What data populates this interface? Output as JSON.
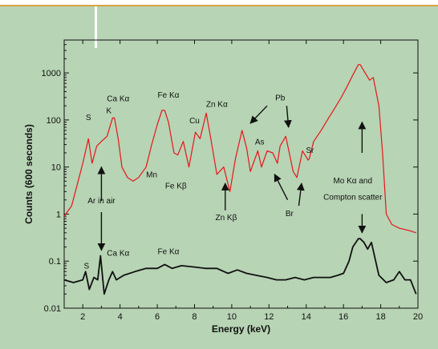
{
  "chart_data": {
    "type": "line",
    "xlabel": "Energy (keV)",
    "ylabel": "Counts (600 seconds)",
    "xlim": [
      1,
      20
    ],
    "ylim": [
      0.01,
      5000
    ],
    "yscale": "log",
    "xticks": [
      2,
      4,
      6,
      8,
      10,
      12,
      14,
      16,
      18,
      20
    ],
    "yticks": [
      {
        "v": 0.01,
        "label": "0.01"
      },
      {
        "v": 0.1,
        "label": "0.1"
      },
      {
        "v": 1,
        "label": "1"
      },
      {
        "v": 10,
        "label": "10"
      },
      {
        "v": 100,
        "label": "100"
      },
      {
        "v": 1000,
        "label": "1000"
      }
    ],
    "series": [
      {
        "color": "#e8141b",
        "x": [
          1.0,
          1.4,
          1.8,
          2.0,
          2.3,
          2.5,
          2.75,
          3.0,
          3.3,
          3.6,
          3.7,
          3.9,
          4.1,
          4.4,
          4.7,
          5.0,
          5.4,
          5.7,
          6.0,
          6.25,
          6.4,
          6.6,
          6.9,
          7.1,
          7.4,
          7.7,
          8.05,
          8.3,
          8.63,
          8.9,
          9.2,
          9.57,
          9.9,
          10.2,
          10.55,
          10.8,
          11.0,
          11.4,
          11.6,
          11.9,
          12.2,
          12.45,
          12.6,
          12.9,
          13.3,
          13.5,
          13.8,
          14.1,
          14.16,
          14.4,
          14.8,
          15.2,
          15.5,
          15.9,
          16.2,
          16.5,
          16.8,
          16.9,
          17.1,
          17.4,
          17.6,
          17.9,
          18.1,
          18.3,
          18.6,
          19.0,
          19.5,
          19.9
        ],
        "y": [
          0.9,
          1.5,
          6,
          12,
          40,
          12,
          28,
          35,
          45,
          110,
          110,
          40,
          10,
          6,
          5,
          6,
          10,
          30,
          80,
          160,
          160,
          90,
          20,
          18,
          35,
          10,
          55,
          40,
          140,
          35,
          7,
          10,
          3,
          15,
          60,
          25,
          8,
          22,
          10,
          22,
          20,
          12,
          28,
          45,
          8,
          6,
          22,
          14,
          15,
          35,
          60,
          110,
          170,
          310,
          520,
          900,
          1500,
          1500,
          1100,
          700,
          800,
          200,
          20,
          1,
          0.6,
          0.5,
          0.45,
          0.4
        ]
      },
      {
        "color": "#111111",
        "x": [
          1.0,
          1.5,
          2.0,
          2.15,
          2.35,
          2.6,
          2.8,
          2.95,
          3.15,
          3.4,
          3.6,
          3.8,
          4.2,
          4.8,
          5.4,
          6.0,
          6.4,
          6.8,
          7.3,
          8.0,
          8.6,
          9.2,
          9.8,
          10.3,
          10.8,
          11.3,
          11.9,
          12.4,
          12.9,
          13.4,
          13.9,
          14.4,
          14.9,
          15.3,
          15.7,
          16.0,
          16.3,
          16.5,
          16.8,
          16.9,
          17.1,
          17.3,
          17.5,
          17.9,
          18.3,
          18.7,
          19.0,
          19.3,
          19.6,
          19.9
        ],
        "y": [
          0.04,
          0.035,
          0.04,
          0.06,
          0.025,
          0.045,
          0.04,
          0.13,
          0.02,
          0.04,
          0.06,
          0.04,
          0.05,
          0.06,
          0.07,
          0.07,
          0.085,
          0.07,
          0.08,
          0.075,
          0.07,
          0.07,
          0.055,
          0.065,
          0.055,
          0.05,
          0.045,
          0.04,
          0.04,
          0.045,
          0.04,
          0.045,
          0.045,
          0.045,
          0.05,
          0.055,
          0.1,
          0.2,
          0.3,
          0.3,
          0.25,
          0.18,
          0.25,
          0.05,
          0.035,
          0.04,
          0.06,
          0.04,
          0.04,
          0.02
        ]
      }
    ],
    "annotations": [
      {
        "text": "S",
        "x": 2.3,
        "y": 100
      },
      {
        "text": "K",
        "x": 3.4,
        "y": 140
      },
      {
        "text": "Ca Kα",
        "x": 3.9,
        "y": 250
      },
      {
        "text": "Fe Kα",
        "x": 6.6,
        "y": 300
      },
      {
        "text": "Mn",
        "x": 5.7,
        "y": 6
      },
      {
        "text": "Fe Kβ",
        "x": 7.0,
        "y": 3.5
      },
      {
        "text": "Cu",
        "x": 8.0,
        "y": 85
      },
      {
        "text": "Zn Kα",
        "x": 9.2,
        "y": 190
      },
      {
        "text": "Pb",
        "x": 12.6,
        "y": 260
      },
      {
        "text": "As",
        "x": 11.5,
        "y": 30
      },
      {
        "text": "Sr",
        "x": 14.2,
        "y": 20
      },
      {
        "text": "Zn Kβ",
        "x": 9.7,
        "y": 0.75
      },
      {
        "text": "Br",
        "x": 13.1,
        "y": 0.9
      },
      {
        "text": "Ar in air",
        "x": 3.0,
        "y": 1.7
      },
      {
        "text": "Mo Kα and",
        "x": 16.5,
        "y": 4.5
      },
      {
        "text": "Compton scatter",
        "x": 16.5,
        "y": 2.0
      },
      {
        "text": "S",
        "x": 2.2,
        "y": 0.07
      },
      {
        "text": "Ca Kα",
        "x": 3.9,
        "y": 0.13
      },
      {
        "text": "Fe Kα",
        "x": 6.6,
        "y": 0.14
      }
    ],
    "arrows": [
      {
        "x1": 3.0,
        "y1": 1.9,
        "x2": 3.0,
        "y2": 10
      },
      {
        "x1": 3.0,
        "y1": 1.1,
        "x2": 3.0,
        "y2": 0.17
      },
      {
        "x1": 11.9,
        "y1": 200,
        "x2": 11.0,
        "y2": 85
      },
      {
        "x1": 12.95,
        "y1": 200,
        "x2": 13.05,
        "y2": 70
      },
      {
        "x1": 13.0,
        "y1": 2.0,
        "x2": 12.3,
        "y2": 7
      },
      {
        "x1": 9.65,
        "y1": 1.2,
        "x2": 9.65,
        "y2": 4.5
      },
      {
        "x1": 13.6,
        "y1": 1.5,
        "x2": 13.75,
        "y2": 4.5
      },
      {
        "x1": 17.0,
        "y1": 20,
        "x2": 17.0,
        "y2": 90
      },
      {
        "x1": 17.0,
        "y1": 1.0,
        "x2": 17.0,
        "y2": 0.4
      }
    ]
  }
}
